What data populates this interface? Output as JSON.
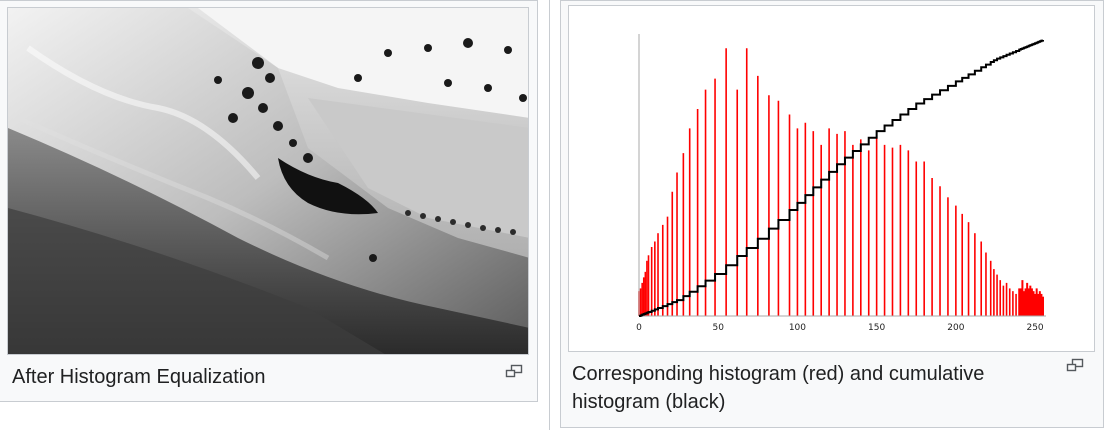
{
  "left_thumb": {
    "caption": "After Histogram Equalization",
    "photo_subject": "grayscale landscape photo of grassy hills, a valley with fields and rows of trees"
  },
  "right_thumb": {
    "caption": "Corresponding histogram (red) and cumulative histogram (black)"
  },
  "icons": {
    "enlarge": "magnify-clip-icon"
  },
  "colors": {
    "histogram": "#ff0000",
    "cumulative": "#000000",
    "axis": "#aaaaaa"
  },
  "chart_data": {
    "type": "bar",
    "title": "",
    "xlabel": "",
    "ylabel": "",
    "xlim": [
      0,
      255
    ],
    "ylim": [
      0,
      1
    ],
    "x_ticks": [
      0,
      50,
      100,
      150,
      200,
      250
    ],
    "series": [
      {
        "name": "histogram",
        "type": "bar",
        "color": "#ff0000",
        "x": [
          0,
          1,
          2,
          3,
          4,
          5,
          6,
          8,
          10,
          12,
          15,
          18,
          21,
          24,
          28,
          32,
          37,
          42,
          48,
          55,
          62,
          68,
          75,
          82,
          88,
          95,
          100,
          105,
          110,
          115,
          120,
          125,
          130,
          135,
          140,
          145,
          150,
          155,
          160,
          165,
          170,
          175,
          180,
          185,
          190,
          195,
          200,
          204,
          208,
          212,
          216,
          219,
          222,
          224,
          226,
          228,
          230,
          232,
          234,
          236,
          238,
          240,
          241,
          242,
          243,
          244,
          245,
          246,
          247,
          248,
          249,
          250,
          251,
          252,
          253,
          254,
          255
        ],
        "values": [
          0.09,
          0.1,
          0.12,
          0.14,
          0.16,
          0.2,
          0.22,
          0.25,
          0.27,
          0.3,
          0.33,
          0.36,
          0.45,
          0.52,
          0.59,
          0.68,
          0.75,
          0.82,
          0.86,
          0.97,
          0.82,
          0.97,
          0.87,
          0.8,
          0.78,
          0.73,
          0.68,
          0.7,
          0.67,
          0.62,
          0.68,
          0.66,
          0.67,
          0.62,
          0.64,
          0.6,
          0.65,
          0.62,
          0.61,
          0.62,
          0.6,
          0.56,
          0.56,
          0.5,
          0.47,
          0.43,
          0.4,
          0.37,
          0.34,
          0.3,
          0.27,
          0.23,
          0.2,
          0.17,
          0.15,
          0.13,
          0.11,
          0.12,
          0.1,
          0.09,
          0.08,
          0.1,
          0.1,
          0.13,
          0.09,
          0.1,
          0.12,
          0.1,
          0.11,
          0.1,
          0.09,
          0.08,
          0.1,
          0.08,
          0.09,
          0.08,
          0.07
        ]
      },
      {
        "name": "cumulative histogram",
        "type": "line",
        "color": "#000000",
        "x": [
          0,
          25,
          50,
          75,
          100,
          125,
          150,
          175,
          200,
          225,
          255
        ],
        "values": [
          0.0,
          0.06,
          0.16,
          0.28,
          0.41,
          0.55,
          0.67,
          0.77,
          0.85,
          0.93,
          1.0
        ]
      }
    ]
  }
}
